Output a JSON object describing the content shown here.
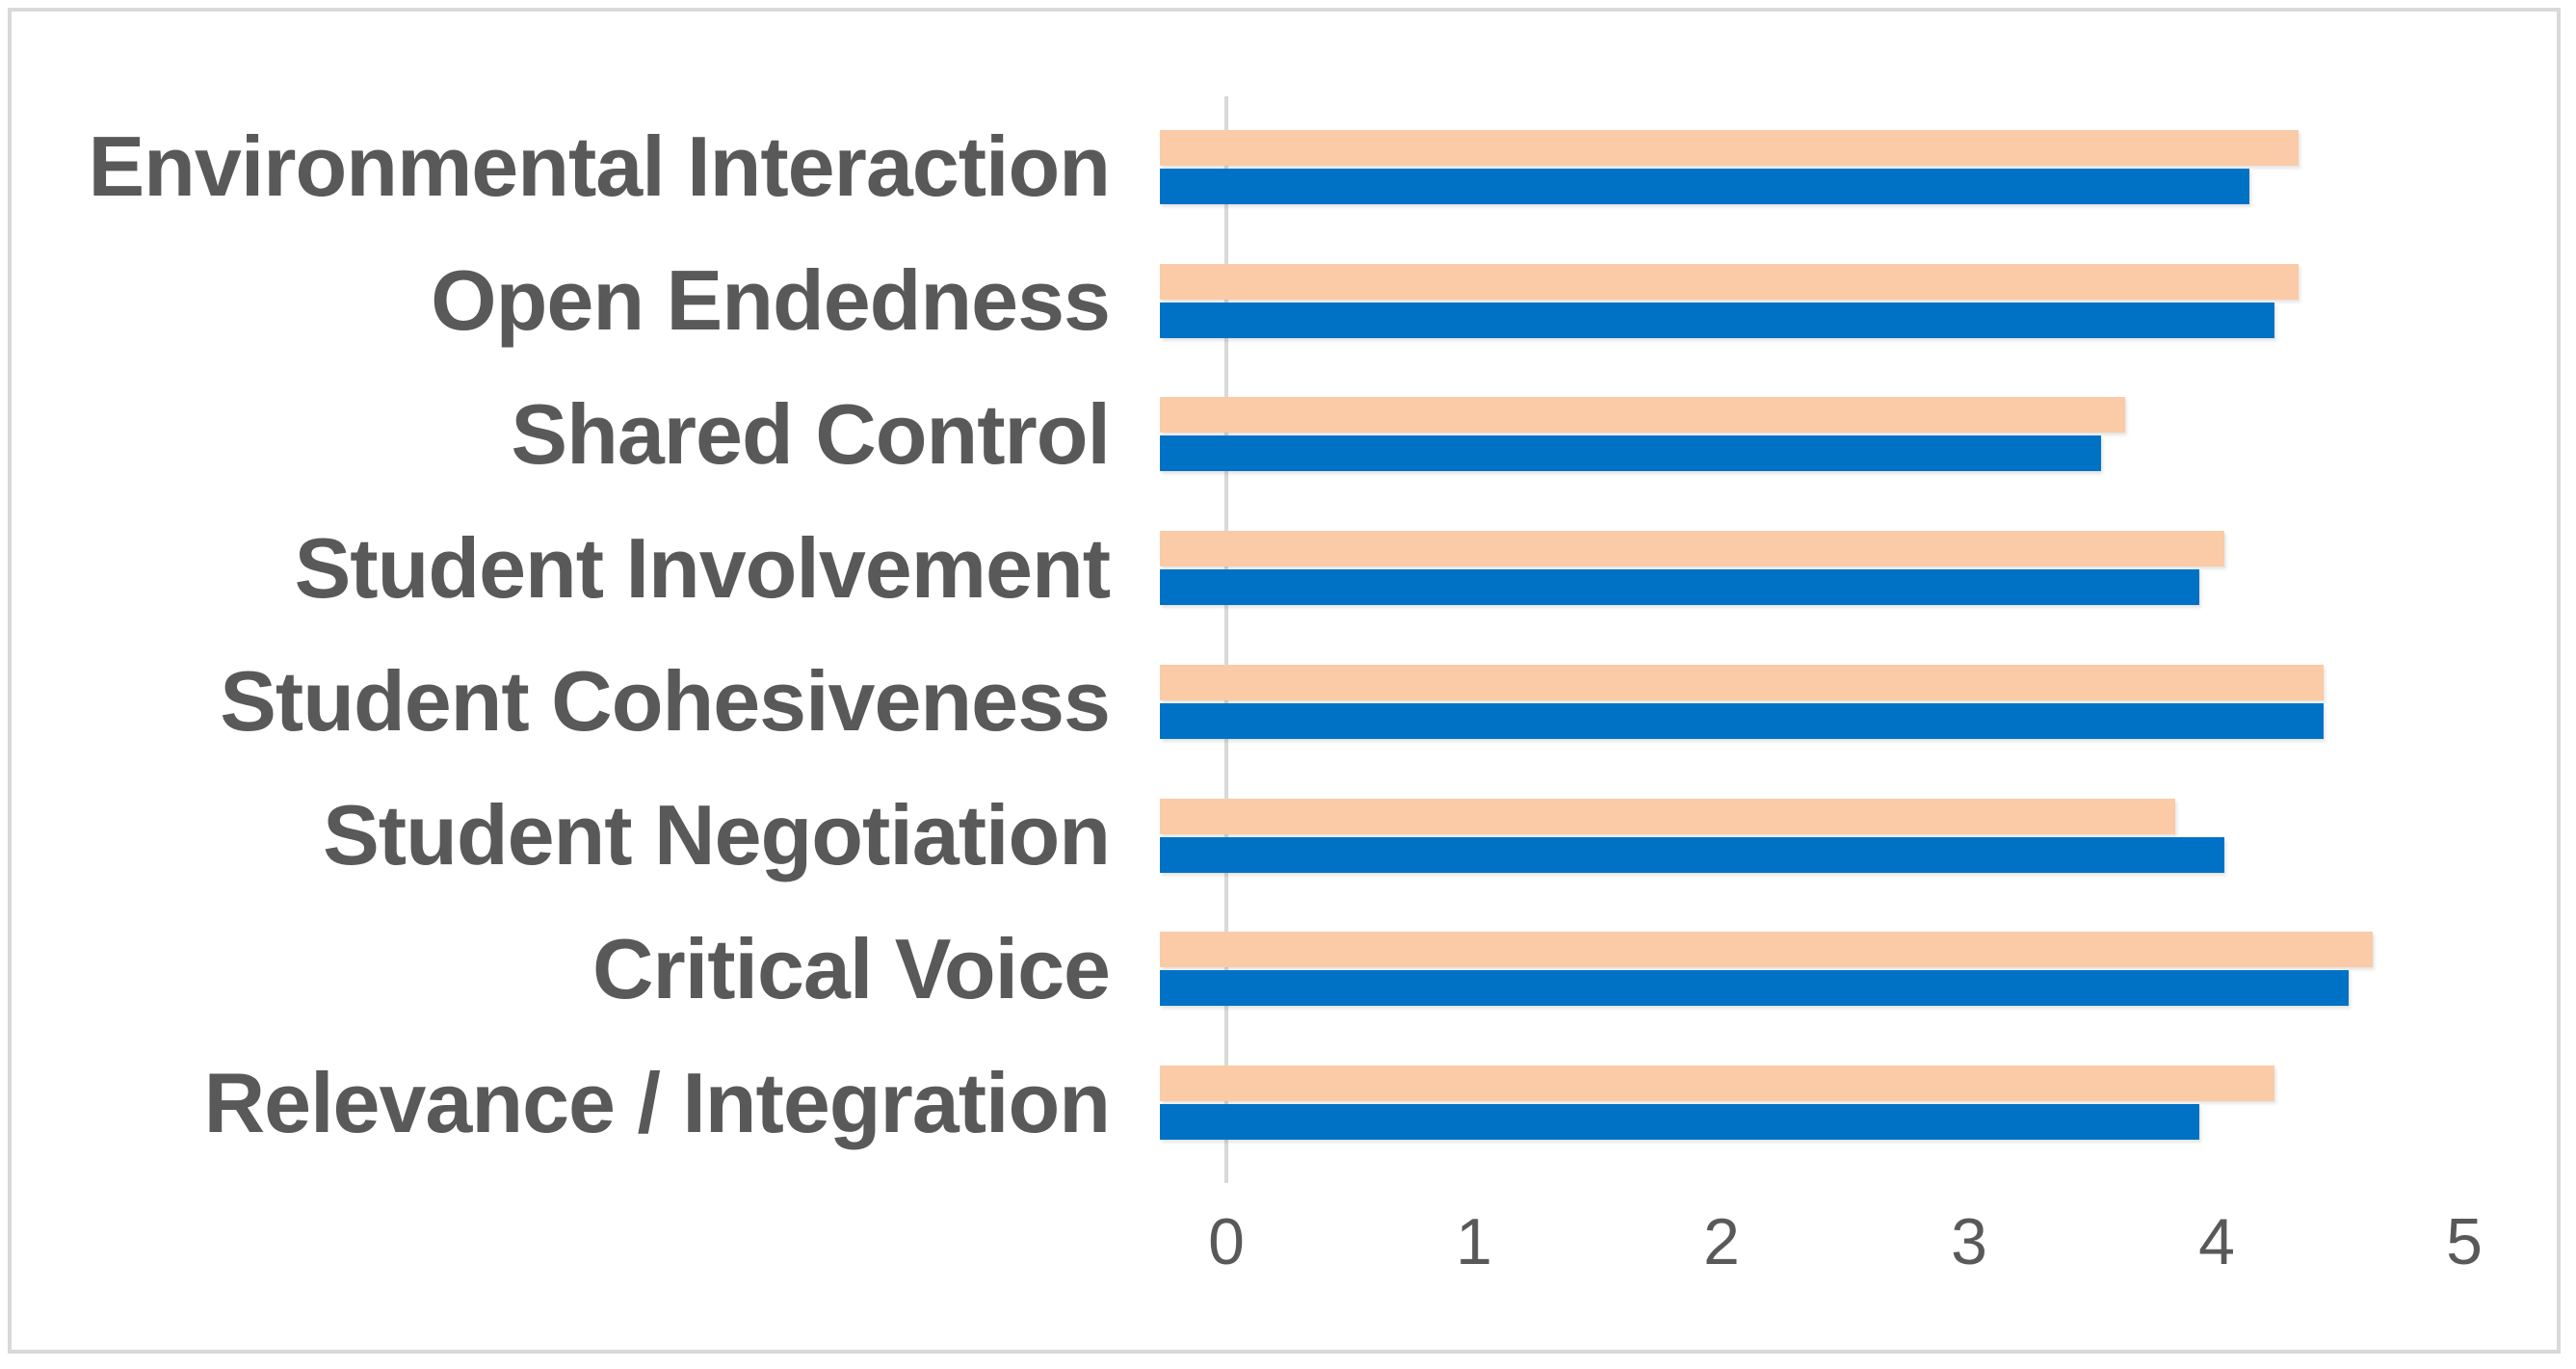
{
  "chart_data": {
    "type": "bar",
    "orientation": "horizontal",
    "title": "",
    "categories": [
      "Environmental Interaction",
      "Open Endedness",
      "Shared Control",
      "Student Involvement",
      "Student Cohesiveness",
      "Student Negotiation",
      "Critical Voice",
      "Relevance / Integration"
    ],
    "series": [
      {
        "name": "orange",
        "color": "#FACBA6",
        "values": [
          4.6,
          4.6,
          3.9,
          4.3,
          4.7,
          4.1,
          4.9,
          4.5
        ]
      },
      {
        "name": "blue",
        "color": "#0072C6",
        "values": [
          4.4,
          4.5,
          3.8,
          4.2,
          4.7,
          4.3,
          4.8,
          4.2
        ]
      }
    ],
    "x_ticks": [
      "0",
      "1",
      "2",
      "3",
      "4",
      "5"
    ],
    "xlim": [
      0,
      5
    ],
    "grid": false,
    "legend": false
  },
  "colors": {
    "background": "#FFFFFF",
    "frame_border": "#D9D9D9",
    "axis_line": "#D9D9D9",
    "label_text": "#595959"
  }
}
